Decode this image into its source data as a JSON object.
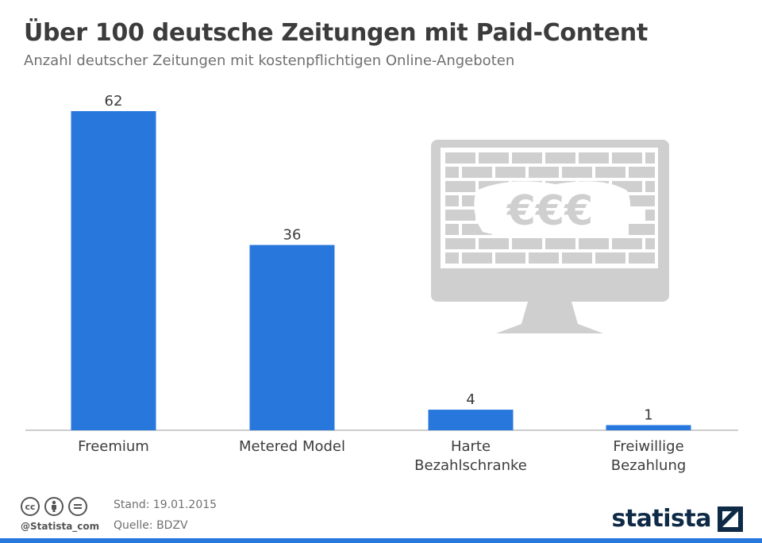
{
  "header": {
    "title": "Über 100 deutsche Zeitungen mit Paid-Content",
    "subtitle": "Anzahl deutscher Zeitungen mit kostenpflichtigen Online-Angeboten"
  },
  "chart_data": {
    "type": "bar",
    "categories": [
      "Freemium",
      "Metered Model",
      "Harte Bezahlschranke",
      "Freiwillige Bezahlung"
    ],
    "category_lines": [
      [
        "Freemium"
      ],
      [
        "Metered Model"
      ],
      [
        "Harte",
        "Bezahlschranke"
      ],
      [
        "Freiwillige",
        "Bezahlung"
      ]
    ],
    "values": [
      62,
      36,
      4,
      1
    ],
    "ylim": [
      0,
      62
    ],
    "bar_color": "#2877dd",
    "grid": false,
    "data_labels": true
  },
  "illustration": {
    "icon": "monitor-paywall-icon",
    "currency_text": "€€€",
    "color": "#cfcfcf"
  },
  "footer": {
    "license_icons": [
      "cc-icon",
      "by-icon",
      "nd-icon"
    ],
    "cc_text": "cc",
    "handle": "@Statista_com",
    "stand": "Stand: 19.01.2015",
    "quelle": "Quelle: BDZV",
    "brand": "statista",
    "brand_color": "#0e2a47"
  }
}
